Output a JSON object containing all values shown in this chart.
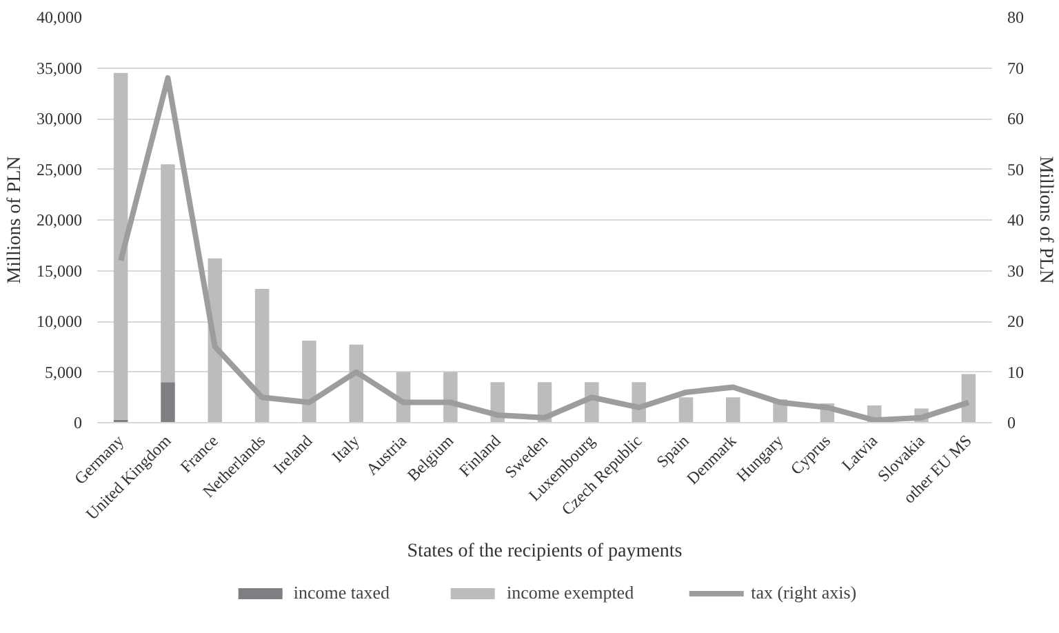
{
  "chart_data": {
    "type": "bar",
    "stacked": true,
    "xlabel": "States of the recipients of payments",
    "ylabel": "Millions of PLN",
    "y2label": "Millions of PLN",
    "categories": [
      "Germany",
      "United Kingdom",
      "France",
      "Netherlands",
      "Ireland",
      "Italy",
      "Austria",
      "Belgium",
      "Finland",
      "Sweden",
      "Luxembourg",
      "Czech Republic",
      "Spain",
      "Denmark",
      "Hungary",
      "Cyprus",
      "Latvia",
      "Slovakia",
      "other EU MS"
    ],
    "series": [
      {
        "name": "income taxed",
        "color": "#7f7f83",
        "values": [
          300,
          4000,
          0,
          0,
          0,
          0,
          0,
          0,
          0,
          0,
          0,
          0,
          0,
          0,
          0,
          0,
          0,
          0,
          0
        ]
      },
      {
        "name": "income exempted",
        "color": "#bcbcbf",
        "values": [
          34200,
          21500,
          16200,
          13200,
          8100,
          7700,
          5000,
          5000,
          4000,
          4000,
          4000,
          4000,
          2500,
          2500,
          2300,
          1900,
          1700,
          1400,
          4800
        ]
      },
      {
        "name": "tax (right axis)",
        "type": "line",
        "axis": "y2",
        "color": "#9d9d9f",
        "values": [
          32,
          68,
          15,
          5,
          4,
          10,
          4,
          4,
          1.5,
          1,
          5,
          3,
          6,
          7,
          4,
          3,
          0.5,
          1,
          4
        ]
      }
    ],
    "ylim": [
      0,
      40000
    ],
    "yticks": [
      {
        "value": 0,
        "label": "0"
      },
      {
        "value": 5000,
        "label": "5,000"
      },
      {
        "value": 10000,
        "label": "10,000"
      },
      {
        "value": 15000,
        "label": "15,000"
      },
      {
        "value": 20000,
        "label": "20,000"
      },
      {
        "value": 25000,
        "label": "25,000"
      },
      {
        "value": 30000,
        "label": "30,000"
      },
      {
        "value": 35000,
        "label": "35,000"
      },
      {
        "value": 40000,
        "label": "40,000"
      }
    ],
    "y2lim": [
      0,
      80
    ],
    "y2ticks": [
      0,
      10,
      20,
      30,
      40,
      50,
      60,
      70,
      80
    ],
    "grid": "y",
    "legend": "bottom"
  }
}
